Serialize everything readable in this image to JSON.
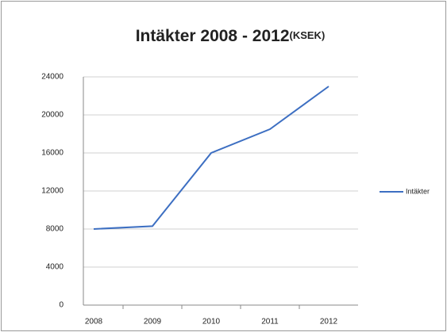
{
  "chart_data": {
    "type": "line",
    "title": "Intäkter 2008 - 2012",
    "title_suffix": "(KSEK)",
    "categories": [
      "2008",
      "2009",
      "2010",
      "2011",
      "2012"
    ],
    "series": [
      {
        "name": "Intäkter",
        "color": "#3d6fc2",
        "values": [
          8000,
          8300,
          16000,
          18500,
          23000
        ]
      }
    ],
    "ylim": [
      0,
      24000
    ],
    "yticks": [
      0,
      4000,
      8000,
      12000,
      16000,
      20000,
      24000
    ],
    "grid": true,
    "legend": "right"
  }
}
